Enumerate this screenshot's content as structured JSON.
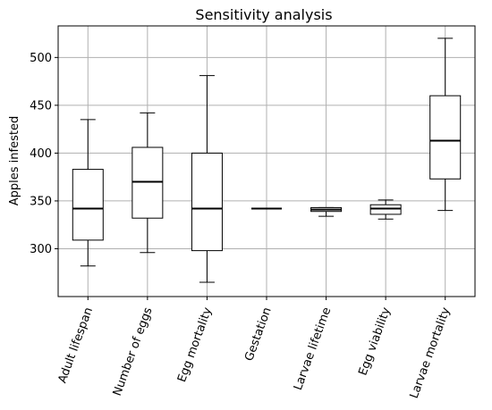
{
  "chart_data": {
    "type": "box",
    "title": "Sensitivity analysis",
    "xlabel": "",
    "ylabel": "Apples infested",
    "ylim": [
      250,
      533
    ],
    "yticks": [
      300,
      350,
      400,
      450,
      500
    ],
    "grid": true,
    "categories": [
      "Adult lifespan",
      "Number of eggs",
      "Egg mortality",
      "Gestation",
      "Larvae lifetime",
      "Egg viability",
      "Larvae mortality"
    ],
    "boxes": [
      {
        "whisker_low": 282,
        "q1": 309,
        "median": 342,
        "q3": 383,
        "whisker_high": 435
      },
      {
        "whisker_low": 296,
        "q1": 332,
        "median": 370,
        "q3": 406,
        "whisker_high": 442
      },
      {
        "whisker_low": 265,
        "q1": 298,
        "median": 342,
        "q3": 400,
        "whisker_high": 481
      },
      {
        "whisker_low": 342,
        "q1": 342,
        "median": 342,
        "q3": 342,
        "whisker_high": 342
      },
      {
        "whisker_low": 334,
        "q1": 339,
        "median": 341,
        "q3": 343,
        "whisker_high": 343
      },
      {
        "whisker_low": 331,
        "q1": 336,
        "median": 342,
        "q3": 346,
        "whisker_high": 351
      },
      {
        "whisker_low": 340,
        "q1": 373,
        "median": 413,
        "q3": 460,
        "whisker_high": 520
      }
    ],
    "colors": {
      "box": "#000000",
      "median": "#000000",
      "grid": "#b0b0b0",
      "background": "#ffffff"
    }
  }
}
